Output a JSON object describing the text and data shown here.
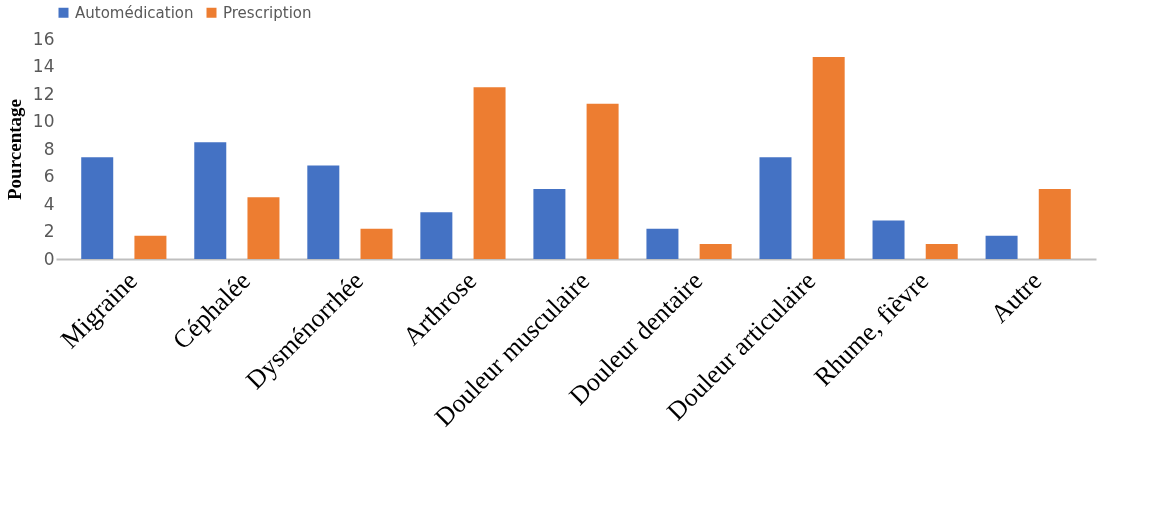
{
  "chart_data": {
    "type": "bar",
    "ylabel": "Pourcentage",
    "categories": [
      "Migraine",
      "Céphalée",
      "Dysménorrhée",
      "Arthrose",
      "Douleur musculaire",
      "Douleur dentaire",
      "Douleur articulaire",
      "Rhume, fièvre",
      "Autre"
    ],
    "series": [
      {
        "name": "Automédication",
        "color": "#4472c4",
        "values": [
          7.4,
          8.5,
          6.8,
          3.4,
          5.1,
          2.2,
          7.4,
          2.8,
          1.7
        ]
      },
      {
        "name": "Prescription",
        "color": "#ed7d31",
        "values": [
          1.7,
          4.5,
          2.2,
          12.5,
          11.3,
          1.1,
          14.7,
          1.1,
          5.1
        ]
      }
    ],
    "ylim": [
      0,
      16
    ],
    "yticks": [
      0,
      2,
      4,
      6,
      8,
      10,
      12,
      14,
      16
    ],
    "grid": false,
    "legend": "top"
  }
}
